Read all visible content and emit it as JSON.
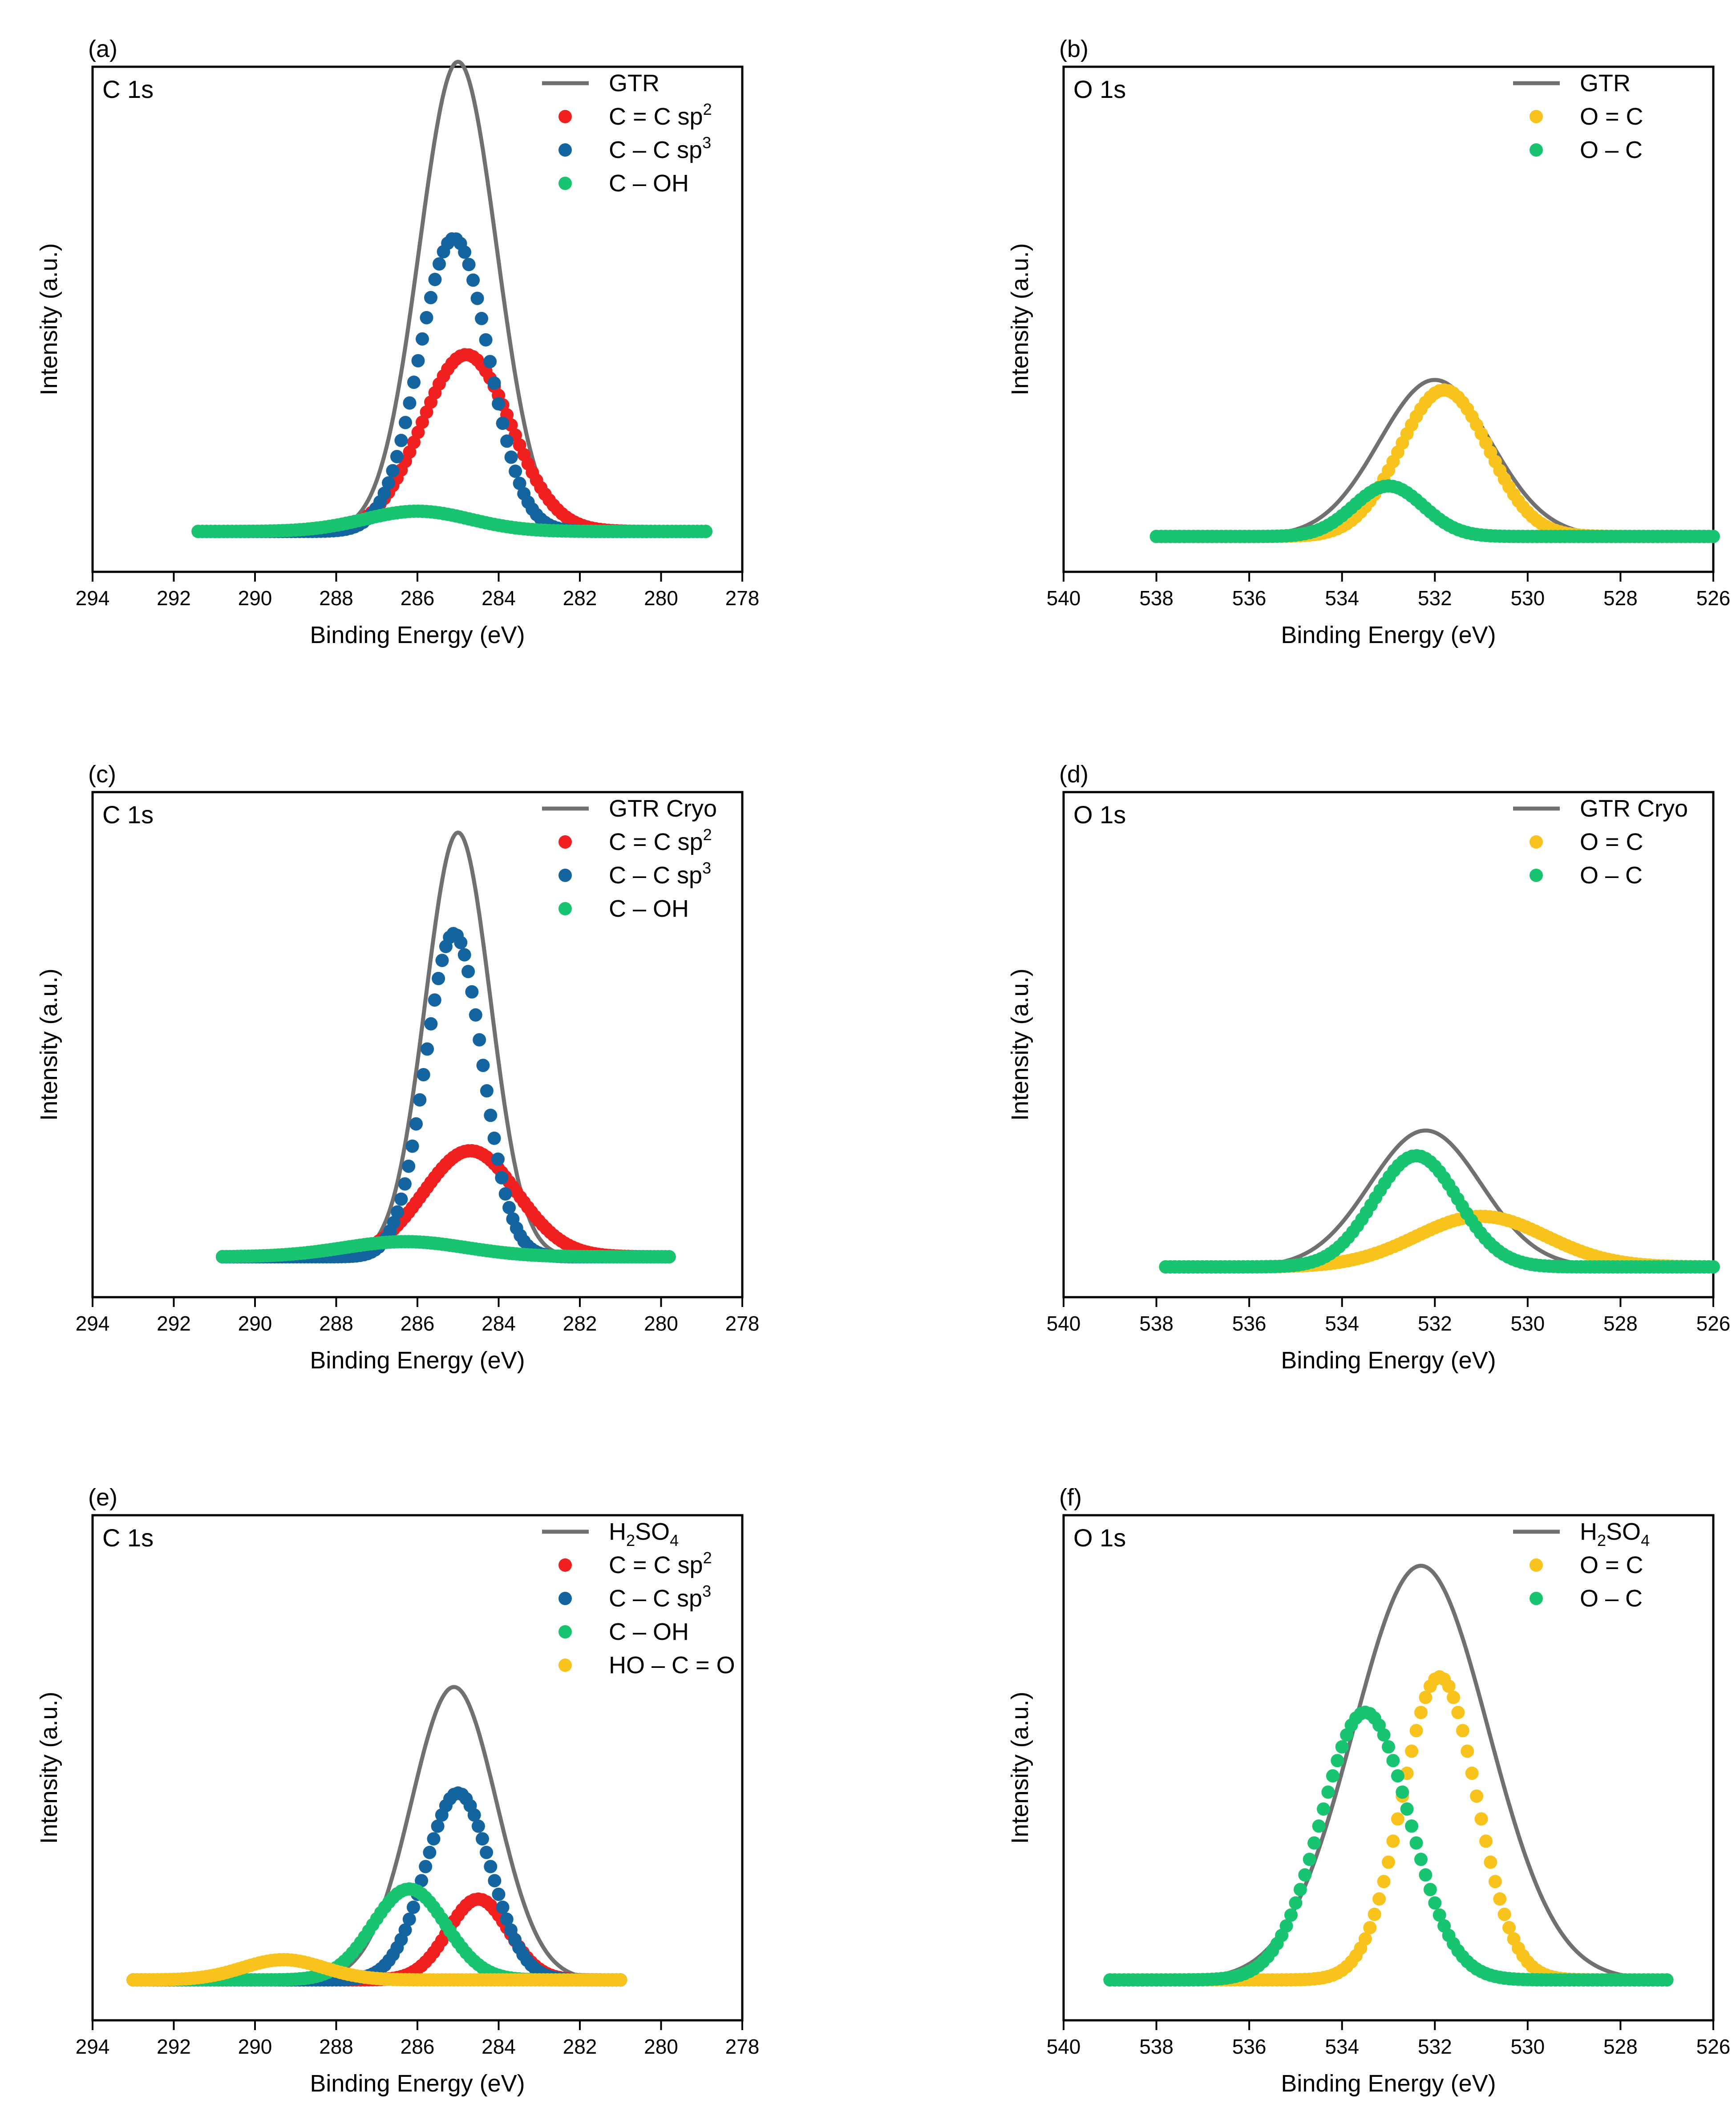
{
  "colors": {
    "envelope": "#707070",
    "red": "#f02020",
    "blue": "#1464a0",
    "green": "#18c470",
    "yellow": "#f7c31c"
  },
  "chart_data": [
    {
      "id": "a",
      "type": "scatter",
      "panel_label": "(a)",
      "core_label": "C 1s",
      "xlabel": "Binding Energy (eV)",
      "ylabel": "Intensity (a.u.)",
      "xlim": [
        294,
        278
      ],
      "ylim": [
        0,
        100
      ],
      "xticks": [
        294,
        292,
        290,
        288,
        286,
        284,
        282,
        280,
        278
      ],
      "x_range": [
        291.4,
        278.9
      ],
      "baseline": 8,
      "legend": [
        {
          "label": "GTR",
          "kind": "line",
          "color": "#707070"
        },
        {
          "label": "C = C sp",
          "sup": "2",
          "kind": "marker",
          "color": "#f02020"
        },
        {
          "label": "C – C sp",
          "sup": "3",
          "kind": "marker",
          "color": "#1464a0"
        },
        {
          "label": "C – OH",
          "kind": "marker",
          "color": "#18c470"
        }
      ],
      "series": [
        {
          "name": "C = C sp2",
          "color": "#f02020",
          "center": 284.8,
          "amplitude": 35,
          "sigma": 1.1
        },
        {
          "name": "C – C sp3",
          "color": "#1464a0",
          "center": 285.1,
          "amplitude": 58,
          "sigma": 0.85
        },
        {
          "name": "C – OH",
          "color": "#18c470",
          "center": 286.0,
          "amplitude": 4,
          "sigma": 1.3
        }
      ],
      "envelope": {
        "name": "GTR",
        "color": "#707070",
        "center": 285.0,
        "amplitude": 93,
        "sigma": 0.95
      }
    },
    {
      "id": "b",
      "type": "scatter",
      "panel_label": "(b)",
      "core_label": "O 1s",
      "xlabel": "Binding Energy (eV)",
      "ylabel": "Intensity (a.u.)",
      "xlim": [
        540,
        526
      ],
      "ylim": [
        0,
        100
      ],
      "xticks": [
        540,
        538,
        536,
        534,
        532,
        530,
        528,
        526
      ],
      "x_range": [
        538.0,
        526.0
      ],
      "baseline": 7,
      "legend": [
        {
          "label": "GTR",
          "kind": "line",
          "color": "#707070"
        },
        {
          "label": "O = C",
          "kind": "marker",
          "color": "#f7c31c"
        },
        {
          "label": "O – C",
          "kind": "marker",
          "color": "#18c470"
        }
      ],
      "series": [
        {
          "name": "O = C",
          "color": "#f7c31c",
          "center": 531.8,
          "amplitude": 29,
          "sigma": 0.95
        },
        {
          "name": "O – C",
          "color": "#18c470",
          "center": 533.0,
          "amplitude": 10,
          "sigma": 0.75
        }
      ],
      "envelope": {
        "name": "GTR",
        "color": "#707070",
        "center": 532.0,
        "amplitude": 31,
        "sigma": 1.2
      }
    },
    {
      "id": "c",
      "type": "scatter",
      "panel_label": "(c)",
      "core_label": "C 1s",
      "xlabel": "Binding Energy (eV)",
      "ylabel": "Intensity (a.u.)",
      "xlim": [
        294,
        278
      ],
      "ylim": [
        0,
        100
      ],
      "xticks": [
        294,
        292,
        290,
        288,
        286,
        284,
        282,
        280,
        278
      ],
      "x_range": [
        290.8,
        279.8
      ],
      "baseline": 8,
      "legend": [
        {
          "label": "GTR Cryo",
          "kind": "line",
          "color": "#707070"
        },
        {
          "label": "C = C sp",
          "sup": "2",
          "kind": "marker",
          "color": "#f02020"
        },
        {
          "label": "C – C sp",
          "sup": "3",
          "kind": "marker",
          "color": "#1464a0"
        },
        {
          "label": "C – OH",
          "kind": "marker",
          "color": "#18c470"
        }
      ],
      "series": [
        {
          "name": "C = C sp2",
          "color": "#f02020",
          "center": 284.7,
          "amplitude": 21,
          "sigma": 1.15
        },
        {
          "name": "C – C sp3",
          "color": "#1464a0",
          "center": 285.1,
          "amplitude": 64,
          "sigma": 0.7
        },
        {
          "name": "C – OH",
          "color": "#18c470",
          "center": 286.3,
          "amplitude": 3,
          "sigma": 1.5
        }
      ],
      "envelope": {
        "name": "GTR Cryo",
        "color": "#707070",
        "center": 285.0,
        "amplitude": 84,
        "sigma": 0.8
      }
    },
    {
      "id": "d",
      "type": "scatter",
      "panel_label": "(d)",
      "core_label": "O 1s",
      "xlabel": "Binding Energy (eV)",
      "ylabel": "Intensity (a.u.)",
      "xlim": [
        540,
        526
      ],
      "ylim": [
        0,
        100
      ],
      "xticks": [
        540,
        538,
        536,
        534,
        532,
        530,
        528,
        526
      ],
      "x_range": [
        537.8,
        526.0
      ],
      "baseline": 6,
      "legend": [
        {
          "label": "GTR Cryo",
          "kind": "line",
          "color": "#707070"
        },
        {
          "label": "O = C",
          "kind": "marker",
          "color": "#f7c31c"
        },
        {
          "label": "O – C",
          "kind": "marker",
          "color": "#18c470"
        }
      ],
      "series": [
        {
          "name": "O = C",
          "color": "#f7c31c",
          "center": 531.0,
          "amplitude": 10,
          "sigma": 1.4
        },
        {
          "name": "O – C",
          "color": "#18c470",
          "center": 532.4,
          "amplitude": 22,
          "sigma": 0.9
        }
      ],
      "envelope": {
        "name": "GTR Cryo",
        "color": "#707070",
        "center": 532.2,
        "amplitude": 27,
        "sigma": 1.2
      }
    },
    {
      "id": "e",
      "type": "scatter",
      "panel_label": "(e)",
      "core_label": "C 1s",
      "xlabel": "Binding Energy (eV)",
      "ylabel": "Intensity (a.u.)",
      "xlim": [
        294,
        278
      ],
      "ylim": [
        0,
        100
      ],
      "xticks": [
        294,
        292,
        290,
        288,
        286,
        284,
        282,
        280,
        278
      ],
      "x_range": [
        293.0,
        281.0
      ],
      "baseline": 8,
      "legend": [
        {
          "label": "H",
          "sub": "2",
          "label2": "SO",
          "sub2": "4",
          "kind": "line",
          "color": "#707070"
        },
        {
          "label": "C = C sp",
          "sup": "2",
          "kind": "marker",
          "color": "#f02020"
        },
        {
          "label": "C – C sp",
          "sup": "3",
          "kind": "marker",
          "color": "#1464a0"
        },
        {
          "label": "C – OH",
          "kind": "marker",
          "color": "#18c470"
        },
        {
          "label": "HO – C = O",
          "kind": "marker",
          "color": "#f7c31c"
        }
      ],
      "series": [
        {
          "name": "C = C sp2",
          "color": "#f02020",
          "center": 284.5,
          "amplitude": 16,
          "sigma": 0.75
        },
        {
          "name": "C – C sp3",
          "color": "#1464a0",
          "center": 285.0,
          "amplitude": 37,
          "sigma": 0.8
        },
        {
          "name": "C – OH",
          "color": "#18c470",
          "center": 286.2,
          "amplitude": 18,
          "sigma": 0.9
        },
        {
          "name": "HO – C = O",
          "color": "#f7c31c",
          "center": 289.3,
          "amplitude": 4,
          "sigma": 1.0
        }
      ],
      "envelope": {
        "name": "H2SO4",
        "color": "#707070",
        "center": 285.1,
        "amplitude": 58,
        "sigma": 1.05
      }
    },
    {
      "id": "f",
      "type": "scatter",
      "panel_label": "(f)",
      "core_label": "O 1s",
      "xlabel": "Binding Energy (eV)",
      "ylabel": "Intensity (a.u.)",
      "xlim": [
        540,
        526
      ],
      "ylim": [
        0,
        100
      ],
      "xticks": [
        540,
        538,
        536,
        534,
        532,
        530,
        528,
        526
      ],
      "x_range": [
        539.0,
        527.0
      ],
      "baseline": 8,
      "legend": [
        {
          "label": "H",
          "sub": "2",
          "label2": "SO",
          "sub2": "4",
          "kind": "line",
          "color": "#707070"
        },
        {
          "label": "O = C",
          "kind": "marker",
          "color": "#f7c31c"
        },
        {
          "label": "O – C",
          "kind": "marker",
          "color": "#18c470"
        }
      ],
      "series": [
        {
          "name": "O = C",
          "color": "#f7c31c",
          "center": 531.9,
          "amplitude": 60,
          "sigma": 0.8
        },
        {
          "name": "O – C",
          "color": "#18c470",
          "center": 533.5,
          "amplitude": 53,
          "sigma": 0.95
        }
      ],
      "envelope": {
        "name": "H2SO4",
        "color": "#707070",
        "center": 532.3,
        "amplitude": 82,
        "sigma": 1.45
      }
    }
  ]
}
